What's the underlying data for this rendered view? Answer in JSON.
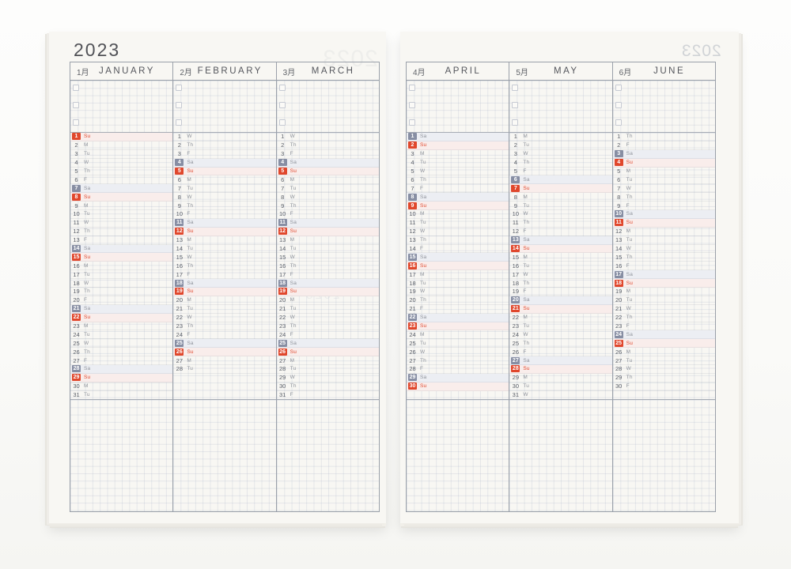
{
  "year": "2023",
  "ghosts": {
    "year": "2023"
  },
  "colors": {
    "sunday_red": "#e0472c",
    "saturday_slate": "#878ea3",
    "sunday_row": "#f9edeb",
    "saturday_row": "#eceef3"
  },
  "pages": [
    {
      "side": "left",
      "months": [
        {
          "jp": "1月",
          "en": "JANUARY",
          "weekdays": [
            "Su",
            "M",
            "Tu",
            "W",
            "Th",
            "F",
            "Sa",
            "Su",
            "M",
            "Tu",
            "W",
            "Th",
            "F",
            "Sa",
            "Su",
            "M",
            "Tu",
            "W",
            "Th",
            "F",
            "Sa",
            "Su",
            "M",
            "Tu",
            "W",
            "Th",
            "F",
            "Sa",
            "Su",
            "M",
            "Tu"
          ]
        },
        {
          "jp": "2月",
          "en": "FEBRUARY",
          "weekdays": [
            "W",
            "Th",
            "F",
            "Sa",
            "Su",
            "M",
            "Tu",
            "W",
            "Th",
            "F",
            "Sa",
            "Su",
            "M",
            "Tu",
            "W",
            "Th",
            "F",
            "Sa",
            "Su",
            "M",
            "Tu",
            "W",
            "Th",
            "F",
            "Sa",
            "Su",
            "M",
            "Tu"
          ]
        },
        {
          "jp": "3月",
          "en": "MARCH",
          "weekdays": [
            "W",
            "Th",
            "F",
            "Sa",
            "Su",
            "M",
            "Tu",
            "W",
            "Th",
            "F",
            "Sa",
            "Su",
            "M",
            "Tu",
            "W",
            "Th",
            "F",
            "Sa",
            "Su",
            "M",
            "Tu",
            "W",
            "Th",
            "F",
            "Sa",
            "Su",
            "M",
            "Tu",
            "W",
            "Th",
            "F"
          ]
        }
      ]
    },
    {
      "side": "right",
      "months": [
        {
          "jp": "4月",
          "en": "APRIL",
          "weekdays": [
            "Sa",
            "Su",
            "M",
            "Tu",
            "W",
            "Th",
            "F",
            "Sa",
            "Su",
            "M",
            "Tu",
            "W",
            "Th",
            "F",
            "Sa",
            "Su",
            "M",
            "Tu",
            "W",
            "Th",
            "F",
            "Sa",
            "Su",
            "M",
            "Tu",
            "W",
            "Th",
            "F",
            "Sa",
            "Su"
          ]
        },
        {
          "jp": "5月",
          "en": "MAY",
          "weekdays": [
            "M",
            "Tu",
            "W",
            "Th",
            "F",
            "Sa",
            "Su",
            "M",
            "Tu",
            "W",
            "Th",
            "F",
            "Sa",
            "Su",
            "M",
            "Tu",
            "W",
            "Th",
            "F",
            "Sa",
            "Su",
            "M",
            "Tu",
            "W",
            "Th",
            "F",
            "Sa",
            "Su",
            "M",
            "Tu",
            "W"
          ]
        },
        {
          "jp": "6月",
          "en": "JUNE",
          "weekdays": [
            "Th",
            "F",
            "Sa",
            "Su",
            "M",
            "Tu",
            "W",
            "Th",
            "F",
            "Sa",
            "Su",
            "M",
            "Tu",
            "W",
            "Th",
            "F",
            "Sa",
            "Su",
            "M",
            "Tu",
            "W",
            "Th",
            "F",
            "Sa",
            "Su",
            "M",
            "Tu",
            "W",
            "Th",
            "F"
          ]
        }
      ]
    }
  ]
}
